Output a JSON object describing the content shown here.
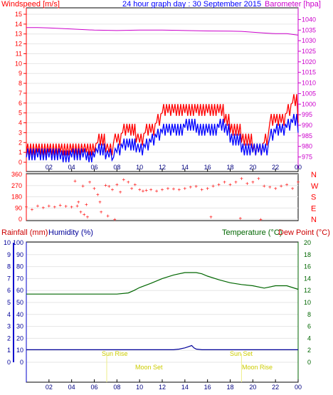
{
  "chart_data": [
    {
      "type": "line",
      "title": "24 hour graph day : 30 September 2015",
      "left_label": "Windspeed [m/s]",
      "right_label": "Barometer [hpa]",
      "x_ticks": [
        "02",
        "04",
        "06",
        "08",
        "10",
        "12",
        "14",
        "16",
        "18",
        "20",
        "22",
        "00"
      ],
      "y_left_ticks": [
        "0",
        "1",
        "2",
        "3",
        "4",
        "5",
        "6",
        "7",
        "8",
        "9",
        "10",
        "11",
        "12",
        "13",
        "14",
        "15"
      ],
      "y_left_range": [
        0,
        15
      ],
      "y_right_ticks": [
        "975",
        "980",
        "985",
        "990",
        "995",
        "1000",
        "1005",
        "1010",
        "1015",
        "1020",
        "1025",
        "1030",
        "1035",
        "1040"
      ],
      "y_right_range": [
        972.5,
        1042.5
      ],
      "series": [
        {
          "name": "Barometer",
          "color": "#cc00cc",
          "axis": "right",
          "x": [
            0,
            1,
            2,
            4,
            6,
            8,
            10,
            12,
            14,
            16,
            18,
            19,
            20,
            21,
            22,
            23,
            24
          ],
          "y": [
            1036.2,
            1036.2,
            1036.0,
            1035.5,
            1035.0,
            1034.8,
            1035.0,
            1035.0,
            1034.8,
            1034.6,
            1034.5,
            1034.4,
            1034.0,
            1033.6,
            1033.3,
            1033.3,
            1032.6
          ]
        },
        {
          "name": "Wind gust",
          "color": "#ff0000",
          "axis": "left",
          "x": [
            0,
            1,
            2,
            3,
            4,
            5,
            5.3,
            6,
            6.3,
            7,
            7.3,
            7.7,
            8,
            8.5,
            9,
            9.7,
            10,
            10.5,
            11,
            11.5,
            12,
            12.5,
            13,
            14,
            15,
            16,
            17,
            17.5,
            18,
            19,
            20,
            20.5,
            21,
            21.5,
            22,
            22.5,
            23,
            23.5,
            24
          ],
          "y": [
            1,
            1,
            1,
            1,
            1,
            1,
            1,
            1,
            2,
            1,
            1,
            2,
            2,
            3,
            3,
            2,
            2,
            3,
            3,
            4,
            5,
            5,
            5,
            5,
            5,
            5,
            5,
            4,
            3,
            2,
            1,
            1,
            2,
            4,
            4,
            4,
            5,
            6,
            4
          ]
        },
        {
          "name": "Wind speed",
          "color": "#0000ff",
          "axis": "left",
          "x": [
            0,
            1,
            2,
            3,
            4,
            5,
            5.3,
            6,
            6.3,
            7,
            7.3,
            7.7,
            8,
            8.5,
            9,
            9.7,
            10,
            10.5,
            11,
            11.5,
            12,
            12.5,
            13,
            14,
            15,
            16,
            17,
            17.5,
            18,
            19,
            20,
            20.5,
            21,
            21.5,
            22,
            22.5,
            23,
            23.5,
            24
          ],
          "y": [
            0.5,
            0.5,
            0.5,
            0.3,
            0.5,
            0.5,
            0.2,
            0.5,
            1,
            0.3,
            0.5,
            0.5,
            1,
            1.5,
            1.5,
            1,
            1,
            1.5,
            2,
            2.5,
            3,
            3,
            3,
            3.5,
            3,
            3,
            3.5,
            3,
            2,
            1,
            1,
            1,
            1,
            2.5,
            3,
            3,
            3.5,
            4,
            3
          ]
        }
      ]
    },
    {
      "type": "scatter",
      "right_label": [
        "N",
        "W",
        "S",
        "E",
        "N"
      ],
      "y_ticks": [
        "0",
        "90",
        "180",
        "270",
        "360"
      ],
      "y_range": [
        0,
        360
      ],
      "series": [
        {
          "name": "Wind direction",
          "color": "#ff0000",
          "x": [
            0,
            0.5,
            1,
            1.5,
            2,
            2.5,
            3,
            3.5,
            4,
            4.3,
            4.6,
            5,
            5.3,
            5.6,
            6,
            6.3,
            6.6,
            7,
            7.3,
            7.6,
            8,
            8.3,
            8.6,
            9,
            9.3,
            9.6,
            10,
            10.3,
            10.6,
            11,
            11.5,
            12,
            12.5,
            13,
            13.5,
            14,
            14.5,
            15,
            15.5,
            16,
            16.5,
            17,
            17.5,
            18,
            18.5,
            19,
            19.5,
            20,
            20.5,
            21,
            21.5,
            22,
            22.5,
            23,
            23.5,
            24,
            4.5,
            4.8,
            5.1,
            5.4,
            6.5,
            7.2,
            7.8,
            16.3,
            18.9,
            20.7
          ],
          "y": [
            100,
            80,
            110,
            95,
            110,
            100,
            115,
            105,
            100,
            310,
            140,
            270,
            120,
            300,
            250,
            200,
            60,
            275,
            265,
            240,
            280,
            220,
            320,
            300,
            250,
            280,
            240,
            230,
            235,
            240,
            230,
            240,
            250,
            245,
            240,
            250,
            260,
            265,
            240,
            250,
            270,
            280,
            300,
            280,
            300,
            330,
            290,
            300,
            330,
            270,
            260,
            250,
            270,
            280,
            250,
            300,
            110,
            60,
            40,
            20,
            140,
            30,
            0,
            20,
            10,
            0
          ]
        }
      ]
    },
    {
      "type": "line",
      "left_label_1": "Rainfall (mm)",
      "left_label_2": "Humidity (%)",
      "right_label_1": "Temperature (°C)",
      "right_label_2": "Dew Point (°C)",
      "y_rain_ticks": [
        "0",
        "1",
        "2",
        "3",
        "4",
        "5",
        "6",
        "7",
        "8",
        "9",
        "10"
      ],
      "y_hum_ticks": [
        "0",
        "10",
        "20",
        "30",
        "40",
        "50",
        "60",
        "70",
        "80",
        "90",
        "100"
      ],
      "y_right_ticks": [
        "0",
        "2",
        "4",
        "6",
        "8",
        "10",
        "12",
        "14",
        "16",
        "18",
        "20"
      ],
      "y_range": [
        0,
        100
      ],
      "x_ticks": [
        "02",
        "04",
        "06",
        "08",
        "10",
        "12",
        "14",
        "16",
        "18",
        "20",
        "22",
        "00"
      ],
      "sun_rise": "Sun Rise",
      "sun_set": "Sun Set",
      "moon_set": "Moon Set",
      "moon_rise": "Moon Rise",
      "sun_rise_hour": 7.1,
      "sun_set_hour": 19.0,
      "series": [
        {
          "name": "Temperature",
          "color": "#006600",
          "x": [
            0,
            1,
            2,
            3,
            4,
            5,
            6,
            7,
            8,
            9,
            9.5,
            10,
            11,
            12,
            13,
            14,
            15,
            15.5,
            16,
            17,
            18,
            19,
            20,
            21,
            22,
            23,
            24
          ],
          "y": [
            11.4,
            11.4,
            11.4,
            11.4,
            11.4,
            11.4,
            11.4,
            11.4,
            11.4,
            11.6,
            12.0,
            12.5,
            13.2,
            14.0,
            14.6,
            15.0,
            15.0,
            14.8,
            14.4,
            13.8,
            13.3,
            13.0,
            12.8,
            12.4,
            12.8,
            12.8,
            12.2
          ]
        },
        {
          "name": "Humidity",
          "color": "#000099",
          "x": [
            0,
            2,
            4,
            6,
            8,
            10,
            12,
            13,
            13.5,
            14,
            14.3,
            14.6,
            14.8,
            15,
            15.5,
            16,
            18,
            20,
            22,
            24
          ],
          "y": [
            10.5,
            10.5,
            10.5,
            10.5,
            10.5,
            10.5,
            10.5,
            10.5,
            11,
            12,
            13,
            14,
            12,
            11,
            10.5,
            10.5,
            10.5,
            10.5,
            10.5,
            10.5
          ]
        }
      ]
    }
  ]
}
